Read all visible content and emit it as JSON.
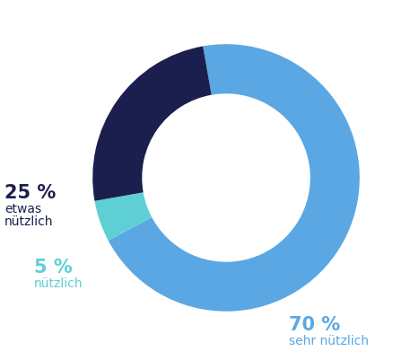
{
  "chart_data": {
    "type": "donut",
    "categories": [
      "sehr nützlich",
      "nützlich",
      "etwas nützlich"
    ],
    "values": [
      70,
      5,
      25
    ],
    "value_labels": [
      "70 %",
      "5 %",
      "25 %"
    ],
    "colors": [
      "#5aa7e3",
      "#5fcfd6",
      "#1b1f4d"
    ],
    "data_labels": true
  }
}
